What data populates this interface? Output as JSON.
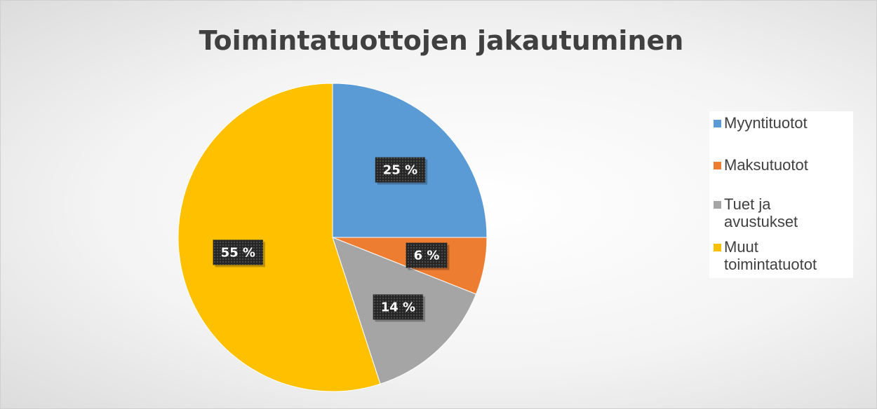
{
  "chart_data": {
    "type": "pie",
    "title": "Toimintatuottojen jakautuminen",
    "categories": [
      "Myyntituotot",
      "Maksutuotot",
      "Tuet ja avustukset",
      "Muut toimintatuotot"
    ],
    "values": [
      25,
      6,
      14,
      55
    ],
    "value_labels": [
      "25 %",
      "6 %",
      "14 %",
      "55 %"
    ],
    "colors": [
      "#5b9bd5",
      "#ed7d31",
      "#a5a5a5",
      "#ffc000"
    ],
    "legend": "right"
  }
}
